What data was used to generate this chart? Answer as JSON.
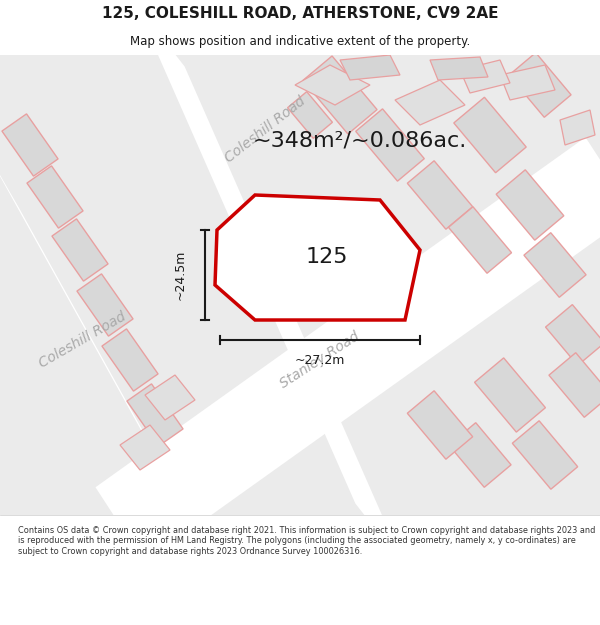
{
  "title_line1": "125, COLESHILL ROAD, ATHERSTONE, CV9 2AE",
  "title_line2": "Map shows position and indicative extent of the property.",
  "area_text": "~348m²/~0.086ac.",
  "label_125": "125",
  "dim_vertical": "~24.5m",
  "dim_horizontal": "~27.2m",
  "road_label_coleshill_upper": "Coleshill Road",
  "road_label_coleshill_lower": "Coleshill Road",
  "road_label_stanley": "Stanley Road",
  "footer": "Contains OS data © Crown copyright and database right 2021. This information is subject to Crown copyright and database rights 2023 and is reproduced with the permission of HM Land Registry. The polygons (including the associated geometry, namely x, y co-ordinates) are subject to Crown copyright and database rights 2023 Ordnance Survey 100026316.",
  "bg_color": "#ffffff",
  "map_bg": "#f2f2f2",
  "road_fill": "#ffffff",
  "building_fill": "#d8d8d8",
  "building_outline": "#c0c0c0",
  "plot_outline": "#e8a0a0",
  "highlighted_plot_outline": "#cc0000",
  "highlighted_plot_fill": "#ffffff",
  "road_label_color": "#b0b0b0",
  "dim_color": "#1a1a1a",
  "area_text_color": "#1a1a1a",
  "label_color": "#1a1a1a",
  "title_color": "#1a1a1a",
  "footer_color": "#333333"
}
